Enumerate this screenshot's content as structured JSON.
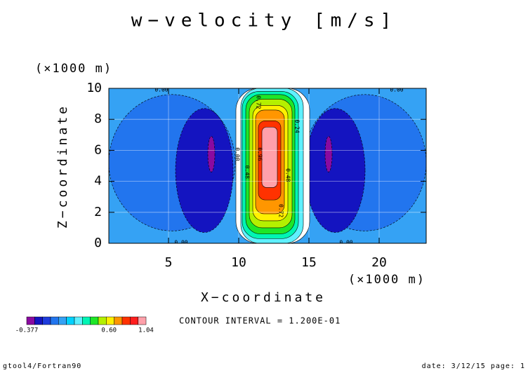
{
  "chart_data": {
    "type": "contour",
    "title": "w−velocity [m/s]",
    "xlabel": "X−coordinate",
    "xunit": "(×1000 m)",
    "ylabel": "Z−coordinate",
    "yunit": "(×1000 m)",
    "xlim": [
      0.75,
      23.35
    ],
    "xticks": [
      5,
      10,
      15,
      20
    ],
    "ylim": [
      0,
      10
    ],
    "yticks": [
      0,
      2,
      4,
      6,
      8,
      10
    ],
    "grid": true,
    "background": {
      "level": -0.06,
      "color": "#35a2f4"
    },
    "regions": [
      {
        "level": -0.12,
        "color": "#2275ee",
        "x": [
          0.75,
          9.75
        ],
        "y": [
          0.8,
          9.6
        ]
      },
      {
        "level": -0.12,
        "color": "#2275ee",
        "x": [
          14.6,
          23.35
        ],
        "y": [
          0.8,
          9.6
        ]
      },
      {
        "level": -0.24,
        "color": "#1414c0",
        "x": [
          5.5,
          9.6
        ],
        "y": [
          0.7,
          8.7
        ]
      },
      {
        "level": -0.24,
        "color": "#1414c0",
        "x": [
          14.75,
          19.0
        ],
        "y": [
          0.7,
          8.7
        ]
      },
      {
        "level": -0.36,
        "color": "#8a0aa0",
        "x": [
          7.8,
          8.3
        ],
        "y": [
          4.6,
          6.9
        ]
      },
      {
        "level": -0.36,
        "color": "#8a0aa0",
        "x": [
          16.15,
          16.65
        ],
        "y": [
          4.6,
          6.9
        ]
      },
      {
        "level": 0.0,
        "color": "#ffffff",
        "x": [
          9.8,
          15.05
        ],
        "y": [
          0,
          10
        ]
      },
      {
        "level": 0.12,
        "color": "#5ff0ff",
        "x": [
          10.15,
          14.6
        ],
        "y": [
          0,
          10
        ]
      },
      {
        "level": 0.24,
        "color": "#00f5b4",
        "x": [
          10.25,
          14.25
        ],
        "y": [
          0.3,
          9.8
        ]
      },
      {
        "level": 0.36,
        "color": "#1ee628",
        "x": [
          10.5,
          14.0
        ],
        "y": [
          0.6,
          9.6
        ]
      },
      {
        "level": 0.48,
        "color": "#b4f000",
        "x": [
          10.75,
          13.8
        ],
        "y": [
          1.0,
          9.3
        ]
      },
      {
        "level": 0.6,
        "color": "#fff000",
        "x": [
          11.0,
          13.5
        ],
        "y": [
          1.45,
          8.9
        ]
      },
      {
        "level": 0.72,
        "color": "#ff9600",
        "x": [
          11.2,
          13.25
        ],
        "y": [
          1.9,
          8.6
        ]
      },
      {
        "level": 0.84,
        "color": "#ff3200",
        "x": [
          11.4,
          13.0
        ],
        "y": [
          2.8,
          7.9
        ]
      },
      {
        "level": 0.96,
        "color": "#ffa0aa",
        "x": [
          11.65,
          12.75
        ],
        "y": [
          3.6,
          7.5
        ]
      }
    ],
    "contour_labels": [
      {
        "value": 0,
        "label": "0.00",
        "x": 4.5,
        "y": 9.9
      },
      {
        "value": 0,
        "label": "0.00",
        "x": 21.25,
        "y": 9.9
      },
      {
        "value": 0,
        "label": "0.00",
        "x": 5.9,
        "y": 0.05
      },
      {
        "value": 0,
        "label": "0.00",
        "x": 17.65,
        "y": 0.05
      },
      {
        "value": 0.72,
        "label": "0.72",
        "x": 11.4,
        "y": 9.1
      },
      {
        "value": 0.96,
        "label": "0.96",
        "x": 11.5,
        "y": 5.75
      },
      {
        "value": 0.48,
        "label": "0.48",
        "x": 13.5,
        "y": 4.4
      },
      {
        "value": 0.72,
        "label": "0.72",
        "x": 13.0,
        "y": 2.1
      },
      {
        "value": 0.24,
        "label": "0.24",
        "x": 14.15,
        "y": 7.55
      },
      {
        "value": 0,
        "label": "0.00",
        "x": 9.9,
        "y": 5.75
      },
      {
        "value": 0.48,
        "label": "0.48",
        "x": 10.6,
        "y": 4.6
      }
    ],
    "colorbar": {
      "range": [
        -0.377,
        1.04
      ],
      "colors": [
        "#8a0aa0",
        "#1414c0",
        "#1e3cdc",
        "#2275ee",
        "#35a2f4",
        "#00d2ff",
        "#5ff0ff",
        "#00f5b4",
        "#1ee628",
        "#b4f000",
        "#fff000",
        "#ff9600",
        "#ff3200",
        "#ff1e1e",
        "#ffa0aa"
      ],
      "ticks": [
        {
          "value": -0.377,
          "label": "-0.377"
        },
        {
          "value": 0.6,
          "label": "0.60"
        },
        {
          "value": 1.04,
          "label": "1.04"
        }
      ]
    },
    "note": "CONTOUR INTERVAL = 1.200E-01",
    "footer_left": "gtool4/Fortran90",
    "footer_right": "date: 3/12/15 page: 1"
  }
}
